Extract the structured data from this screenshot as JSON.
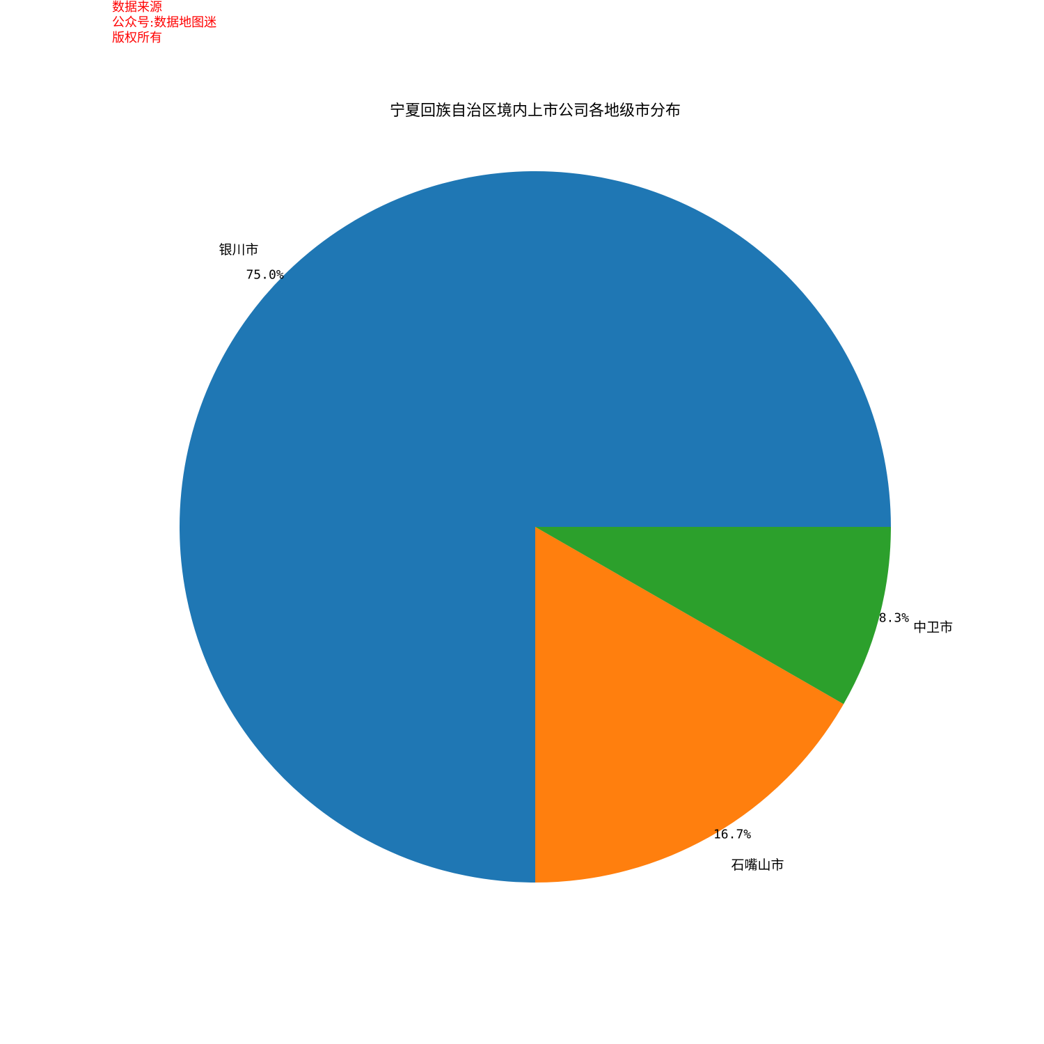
{
  "watermark": {
    "lines": [
      "数据来源",
      "公众号:数据地图迷",
      "版权所有"
    ],
    "color": "#ff0000"
  },
  "chart_data": {
    "type": "pie",
    "title": "宁夏回族自治区境内上市公司各地级市分布",
    "categories": [
      "银川市",
      "石嘴山市",
      "中卫市"
    ],
    "values": [
      75.0,
      16.7,
      8.3
    ],
    "percent_labels": [
      "75.0%",
      "16.7%",
      "8.3%"
    ],
    "colors": [
      "#1f77b4",
      "#ff7f0e",
      "#2ca02c"
    ],
    "start_angle_deg": 0,
    "direction": "counterclockwise",
    "legend": "none"
  }
}
